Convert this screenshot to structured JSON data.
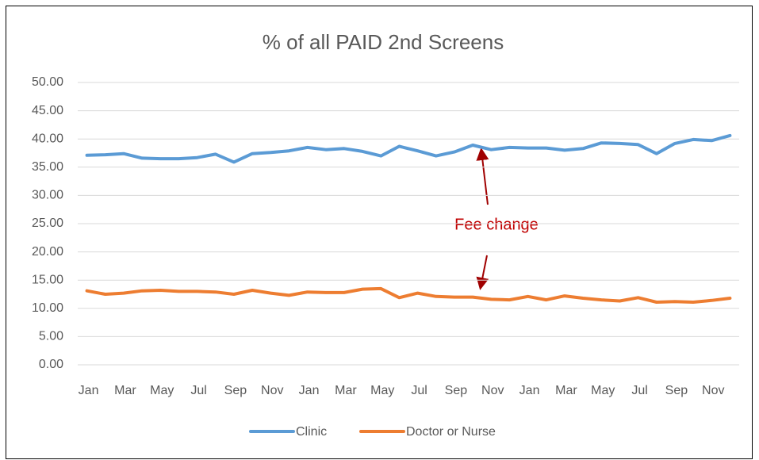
{
  "chart_data": {
    "type": "line",
    "title": "% of all PAID 2nd Screens",
    "categories": [
      "Jan",
      null,
      "Mar",
      null,
      "May",
      null,
      "Jul",
      null,
      "Sep",
      null,
      "Nov",
      null,
      "Jan",
      null,
      "Mar",
      null,
      "May",
      null,
      "Jul",
      null,
      "Sep",
      null,
      "Nov",
      null,
      "Jan",
      null,
      "Mar",
      null,
      "May",
      null,
      "Jul",
      null,
      "Sep",
      null,
      "Nov",
      null
    ],
    "series": [
      {
        "name": "Clinic",
        "color": "#5b9bd5",
        "values": [
          37.1,
          37.2,
          37.4,
          36.6,
          36.5,
          36.5,
          36.7,
          37.3,
          35.9,
          37.4,
          37.6,
          37.9,
          38.5,
          38.1,
          38.3,
          37.8,
          37.0,
          38.7,
          37.9,
          37.0,
          37.7,
          38.9,
          38.1,
          38.5,
          38.4,
          38.4,
          38.0,
          38.3,
          39.3,
          39.2,
          39.0,
          37.4,
          39.2,
          39.9,
          39.7,
          40.6
        ]
      },
      {
        "name": "Doctor or Nurse",
        "color": "#ed7d31",
        "values": [
          13.1,
          12.5,
          12.7,
          13.1,
          13.2,
          13.0,
          13.0,
          12.9,
          12.5,
          13.2,
          12.7,
          12.3,
          12.9,
          12.8,
          12.8,
          13.4,
          13.5,
          11.9,
          12.7,
          12.1,
          12.0,
          12.0,
          11.6,
          11.5,
          12.1,
          11.5,
          12.2,
          11.8,
          11.5,
          11.3,
          11.9,
          11.1,
          11.2,
          11.1,
          11.4,
          11.8
        ]
      }
    ],
    "ylim": [
      0,
      50
    ],
    "yticks": [
      {
        "value": 0,
        "label": "0.00"
      },
      {
        "value": 5,
        "label": "5.00"
      },
      {
        "value": 10,
        "label": "10.00"
      },
      {
        "value": 15,
        "label": "15.00"
      },
      {
        "value": 20,
        "label": "20.00"
      },
      {
        "value": 25,
        "label": "25.00"
      },
      {
        "value": 30,
        "label": "30.00"
      },
      {
        "value": 35,
        "label": "35.00"
      },
      {
        "value": 40,
        "label": "40.00"
      },
      {
        "value": 45,
        "label": "45.00"
      },
      {
        "value": 50,
        "label": "50.00"
      }
    ],
    "grid": true,
    "legend": "bottom",
    "annotation": "Fee change"
  }
}
